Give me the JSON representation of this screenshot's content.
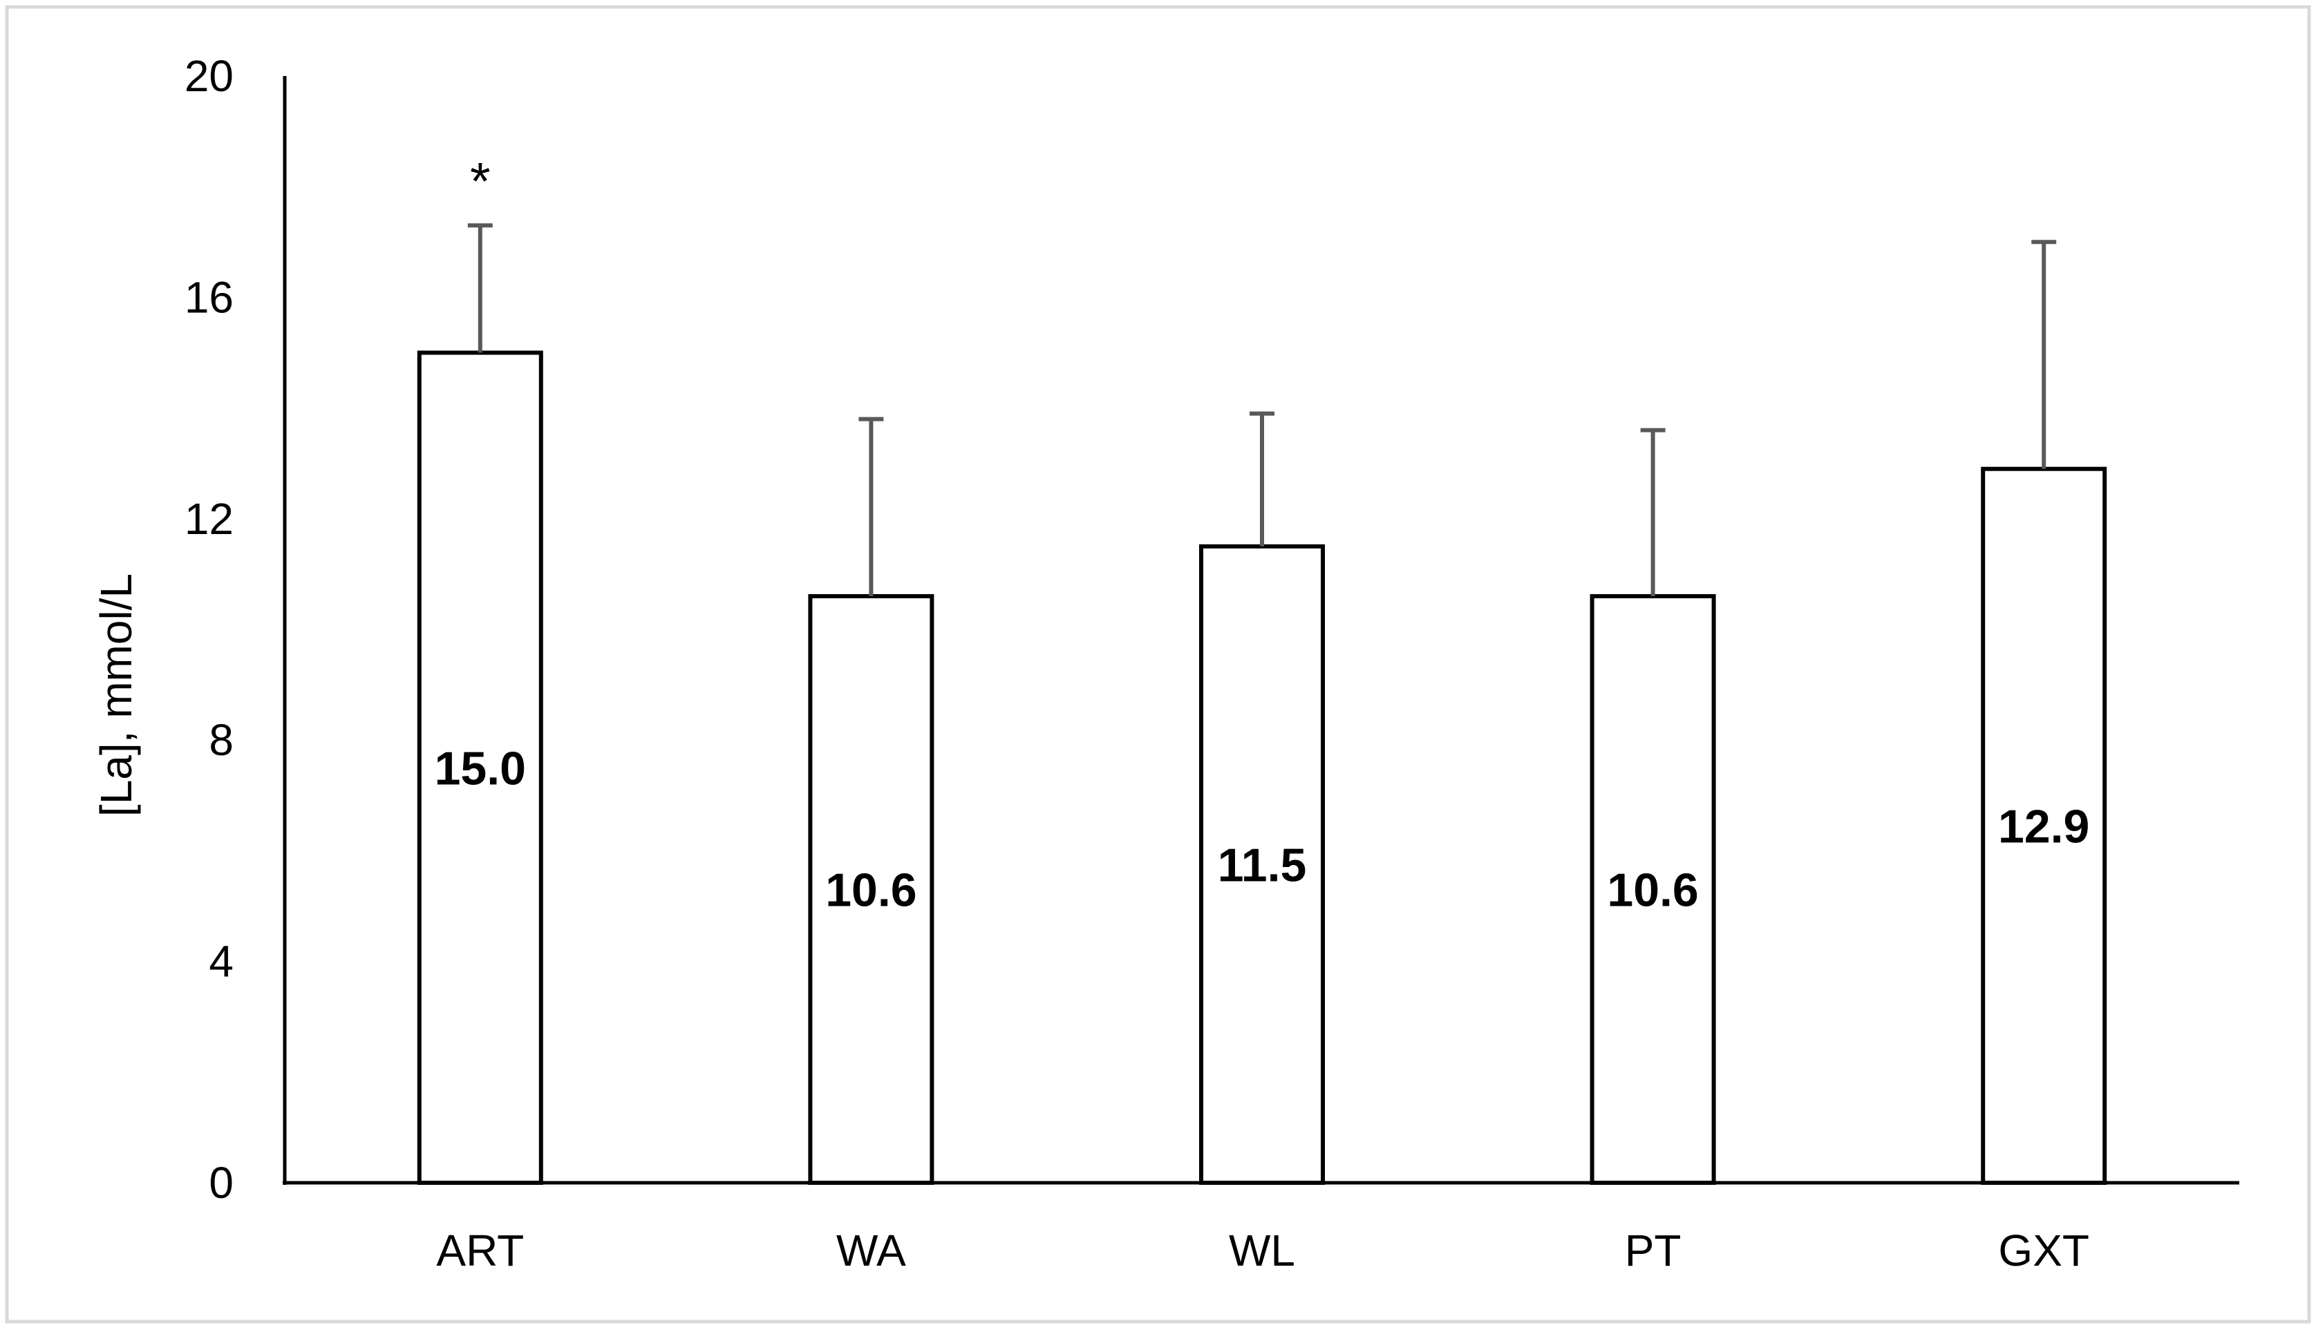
{
  "chart_data": {
    "type": "bar",
    "ylabel": "[La], mmol/L",
    "xlabel": "",
    "ylim": [
      0,
      20
    ],
    "yticks": [
      0,
      4,
      8,
      12,
      16,
      20
    ],
    "categories": [
      "ART",
      "WA",
      "WL",
      "PT",
      "GXT"
    ],
    "values": [
      15.0,
      10.6,
      11.5,
      10.6,
      12.9
    ],
    "value_labels": [
      "15.0",
      "10.6",
      "11.5",
      "10.6",
      "12.9"
    ],
    "error_upper": [
      2.3,
      3.2,
      2.4,
      3.0,
      4.1
    ],
    "annotations": [
      {
        "category": "ART",
        "text": "*"
      }
    ],
    "grid": false,
    "legend": "none",
    "colors": {
      "bar_fill": "#ffffff",
      "bar_stroke": "#000000",
      "error_bar": "#595959",
      "axis": "#000000",
      "frame_border": "#d9d9d9"
    }
  }
}
